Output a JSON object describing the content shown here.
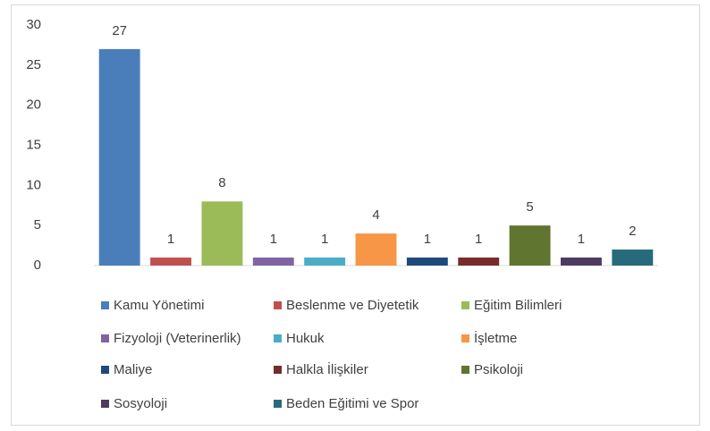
{
  "chart_data": {
    "type": "bar",
    "categories": [
      "Kamu Yönetimi",
      "Beslenme ve Diyetetik",
      "Eğitim Bilimleri",
      "Fizyoloji (Veterinerlik)",
      "Hukuk",
      "İşletme",
      "Maliye",
      "Halkla İlişkiler",
      "Psikoloji",
      "Sosyoloji",
      "Beden Eğitimi ve Spor"
    ],
    "values": [
      27,
      1,
      8,
      1,
      1,
      4,
      1,
      1,
      5,
      1,
      2
    ],
    "colors": [
      "#4a7ebb",
      "#c0504d",
      "#9bbb59",
      "#8064a2",
      "#4bacc6",
      "#f79646",
      "#1f497d",
      "#772c2a",
      "#5f7530",
      "#4d3b62",
      "#276a7c"
    ],
    "ylim": [
      0,
      30
    ],
    "yticks": [
      0,
      5,
      10,
      15,
      20,
      25,
      30
    ],
    "grid": false,
    "legend": "bottom"
  }
}
